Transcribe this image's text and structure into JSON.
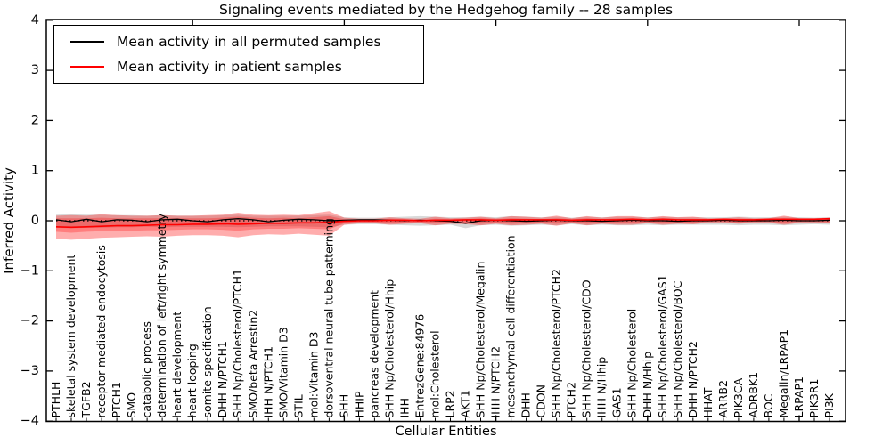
{
  "title": "Signaling events mediated by the Hedgehog family -- 28 samples",
  "axes": {
    "xlabel": "Cellular Entities",
    "ylabel": "Inferred Activity",
    "yticks": [
      "4",
      "3",
      "2",
      "1",
      "0",
      "−1",
      "−2",
      "−3",
      "−4"
    ],
    "ylim": [
      -4,
      4
    ]
  },
  "legend": [
    {
      "label": "Mean activity in all permuted samples",
      "color": "#000000"
    },
    {
      "label": "Mean activity in patient samples",
      "color": "#ff0000"
    }
  ],
  "chart_data": {
    "type": "line",
    "title": "Signaling events mediated by the Hedgehog family -- 28 samples",
    "xlabel": "Cellular Entities",
    "ylabel": "Inferred Activity",
    "ylim": [
      -4,
      4
    ],
    "grid": false,
    "legend_position": "upper left",
    "major_xticks": [
      10,
      20,
      30,
      40,
      50
    ],
    "categories": [
      "PTHLH",
      "skeletal system development",
      "TGFB2",
      "receptor-mediated endocytosis",
      "PTCH1",
      "SMO",
      "catabolic process",
      "determination of left/right symmetry",
      "heart development",
      "heart looping",
      "somite specification",
      "DHH N/PTCH1",
      "SHH Np/Cholesterol/PTCH1",
      "SMO/beta Arrestin2",
      "IHH N/PTCH1",
      "SMO/Vitamin D3",
      "STIL",
      "mol:Vitamin D3",
      "dorsoventral neural tube patterning",
      "SHH",
      "HHIP",
      "pancreas development",
      "SHH Np/Cholesterol/Hhip",
      "IHH",
      "EntrezGene:84976",
      "mol:Cholesterol",
      "LRP2",
      "AKT1",
      "SHH Np/Cholesterol/Megalin",
      "IHH N/PTCH2",
      "mesenchymal cell differentiation",
      "DHH",
      "CDON",
      "SHH Np/Cholesterol/PTCH2",
      "PTCH2",
      "SHH Np/Cholesterol/CDO",
      "IHH N/Hhip",
      "GAS1",
      "SHH Np/Cholesterol",
      "DHH N/Hhip",
      "SHH Np/Cholesterol/GAS1",
      "SHH Np/Cholesterol/BOC",
      "DHH N/PTCH2",
      "HHAT",
      "ARRB2",
      "PIK3CA",
      "ADRBK1",
      "BOC",
      "Megalin/LRPAP1",
      "LRPAP1",
      "PIK3R1",
      "PI3K"
    ],
    "zero_line": {
      "style": "dotted",
      "color": "#000000"
    },
    "series": [
      {
        "name": "Mean activity in all permuted samples",
        "color": "#000000",
        "values": [
          0.02,
          -0.02,
          0.03,
          -0.02,
          0.02,
          0.01,
          -0.02,
          0.02,
          0.03,
          0.0,
          -0.02,
          0.02,
          0.04,
          0.02,
          -0.02,
          0.01,
          0.03,
          0.02,
          0.0,
          0.01,
          0.02,
          0.02,
          0.01,
          0.0,
          0.01,
          0.0,
          -0.01,
          -0.05,
          0.0,
          0.01,
          0.0,
          -0.01,
          0.0,
          0.01,
          0.0,
          0.0,
          -0.01,
          0.0,
          0.01,
          0.0,
          0.0,
          -0.01,
          0.0,
          0.0,
          0.01,
          0.0,
          0.0,
          0.0,
          0.01,
          0.0,
          0.0,
          0.01
        ]
      },
      {
        "name": "Mean activity in patient samples",
        "color": "#ff0000",
        "values": [
          -0.12,
          -0.13,
          -0.12,
          -0.11,
          -0.1,
          -0.1,
          -0.09,
          -0.08,
          -0.08,
          -0.07,
          -0.07,
          -0.06,
          -0.07,
          -0.06,
          -0.05,
          -0.05,
          -0.04,
          -0.04,
          -0.03,
          -0.01,
          0.0,
          0.0,
          0.01,
          0.01,
          0.0,
          0.01,
          0.01,
          0.02,
          0.02,
          0.01,
          0.02,
          0.02,
          0.02,
          0.02,
          0.01,
          0.02,
          0.02,
          0.02,
          0.03,
          0.02,
          0.03,
          0.02,
          0.02,
          0.02,
          0.03,
          0.02,
          0.02,
          0.03,
          0.03,
          0.03,
          0.03,
          0.04
        ]
      }
    ],
    "bands": [
      {
        "name": "permuted-spread",
        "color": "rgba(120,120,120,0.28)",
        "upper": [
          0.12,
          0.13,
          0.12,
          0.12,
          0.11,
          0.11,
          0.1,
          0.11,
          0.1,
          0.1,
          0.1,
          0.11,
          0.12,
          0.1,
          0.1,
          0.1,
          0.1,
          0.11,
          0.12,
          0.07,
          0.06,
          0.06,
          0.07,
          0.08,
          0.09,
          0.08,
          0.07,
          0.07,
          0.08,
          0.07,
          0.09,
          0.08,
          0.07,
          0.08,
          0.06,
          0.08,
          0.07,
          0.08,
          0.08,
          0.07,
          0.08,
          0.07,
          0.07,
          0.07,
          0.07,
          0.08,
          0.07,
          0.07,
          0.08,
          0.07,
          0.06,
          0.07
        ],
        "lower": [
          -0.14,
          -0.15,
          -0.14,
          -0.14,
          -0.13,
          -0.13,
          -0.12,
          -0.13,
          -0.12,
          -0.12,
          -0.12,
          -0.12,
          -0.13,
          -0.12,
          -0.11,
          -0.11,
          -0.11,
          -0.12,
          -0.13,
          -0.08,
          -0.07,
          -0.07,
          -0.08,
          -0.09,
          -0.1,
          -0.09,
          -0.08,
          -0.15,
          -0.09,
          -0.08,
          -0.1,
          -0.09,
          -0.08,
          -0.09,
          -0.07,
          -0.09,
          -0.08,
          -0.09,
          -0.09,
          -0.08,
          -0.09,
          -0.08,
          -0.08,
          -0.08,
          -0.08,
          -0.09,
          -0.08,
          -0.08,
          -0.09,
          -0.08,
          -0.07,
          -0.08
        ]
      },
      {
        "name": "patient-spread-outer",
        "color": "rgba(255,0,0,0.32)",
        "upper": [
          0.1,
          0.11,
          0.1,
          0.13,
          0.11,
          0.1,
          0.1,
          0.11,
          0.1,
          0.1,
          0.11,
          0.12,
          0.16,
          0.12,
          0.11,
          0.12,
          0.11,
          0.15,
          0.19,
          0.06,
          0.04,
          0.04,
          0.07,
          0.05,
          0.04,
          0.08,
          0.05,
          0.06,
          0.08,
          0.05,
          0.09,
          0.08,
          0.06,
          0.1,
          0.05,
          0.09,
          0.06,
          0.09,
          0.09,
          0.06,
          0.09,
          0.07,
          0.08,
          0.05,
          0.05,
          0.07,
          0.05,
          0.05,
          0.1,
          0.05,
          0.05,
          0.06
        ],
        "lower": [
          -0.36,
          -0.38,
          -0.36,
          -0.34,
          -0.33,
          -0.32,
          -0.31,
          -0.32,
          -0.3,
          -0.29,
          -0.29,
          -0.3,
          -0.33,
          -0.29,
          -0.27,
          -0.28,
          -0.26,
          -0.28,
          -0.3,
          -0.08,
          -0.05,
          -0.05,
          -0.08,
          -0.06,
          -0.05,
          -0.09,
          -0.06,
          -0.07,
          -0.09,
          -0.06,
          -0.09,
          -0.08,
          -0.06,
          -0.1,
          -0.05,
          -0.09,
          -0.06,
          -0.08,
          -0.08,
          -0.05,
          -0.08,
          -0.06,
          -0.07,
          -0.04,
          -0.04,
          -0.06,
          -0.04,
          -0.04,
          -0.08,
          -0.04,
          -0.04,
          -0.05
        ]
      },
      {
        "name": "patient-spread-inner",
        "color": "rgba(255,0,0,0.27)",
        "upper": [
          0.05,
          0.05,
          0.05,
          0.06,
          0.05,
          0.05,
          0.05,
          0.05,
          0.05,
          0.05,
          0.05,
          0.06,
          0.08,
          0.06,
          0.05,
          0.06,
          0.05,
          0.07,
          0.09,
          0.03,
          0.02,
          0.02,
          0.04,
          0.03,
          0.02,
          0.04,
          0.03,
          0.03,
          0.05,
          0.03,
          0.05,
          0.04,
          0.03,
          0.05,
          0.03,
          0.05,
          0.03,
          0.05,
          0.05,
          0.03,
          0.05,
          0.04,
          0.04,
          0.03,
          0.03,
          0.04,
          0.03,
          0.03,
          0.05,
          0.03,
          0.03,
          0.04
        ],
        "lower": [
          -0.22,
          -0.24,
          -0.22,
          -0.21,
          -0.2,
          -0.2,
          -0.19,
          -0.19,
          -0.18,
          -0.17,
          -0.17,
          -0.18,
          -0.2,
          -0.17,
          -0.16,
          -0.16,
          -0.15,
          -0.16,
          -0.17,
          -0.05,
          -0.03,
          -0.03,
          -0.05,
          -0.04,
          -0.03,
          -0.05,
          -0.04,
          -0.04,
          -0.06,
          -0.04,
          -0.06,
          -0.05,
          -0.04,
          -0.06,
          -0.03,
          -0.06,
          -0.04,
          -0.05,
          -0.05,
          -0.03,
          -0.05,
          -0.04,
          -0.04,
          -0.02,
          -0.02,
          -0.04,
          -0.02,
          -0.02,
          -0.05,
          -0.02,
          -0.02,
          -0.03
        ]
      }
    ]
  }
}
